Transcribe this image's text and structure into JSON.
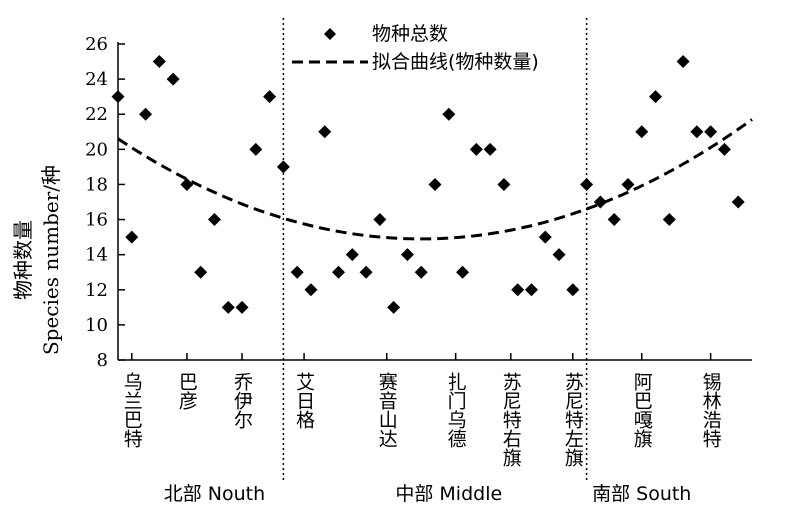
{
  "chart_data": {
    "type": "scatter",
    "ylabel_cn": "物种数量",
    "ylabel_en": "Species number/种",
    "ylim": [
      8,
      26
    ],
    "yticks": [
      8,
      10,
      12,
      14,
      16,
      18,
      20,
      22,
      24,
      26
    ],
    "categories": [
      "乌兰巴特",
      "巴彦",
      "乔伊尔",
      "艾日格",
      "赛音山达",
      "扎门乌德",
      "苏尼特右旗",
      "苏尼特左旗",
      "阿巴嘎旗",
      "锡林浩特"
    ],
    "category_positions": [
      2,
      6,
      10,
      14.5,
      20.5,
      25.5,
      29.5,
      34,
      39,
      44
    ],
    "regions": [
      {
        "label": "北部 Nouth",
        "center": 8
      },
      {
        "label": "中部 Middle",
        "center": 25
      },
      {
        "label": "南部 South",
        "center": 39
      }
    ],
    "region_dividers": [
      13,
      35
    ],
    "xlim": [
      1,
      47
    ],
    "series": [
      {
        "name": "物种总数",
        "x": [
          1,
          2,
          3,
          4,
          5,
          6,
          7,
          8,
          9,
          10,
          11,
          12,
          13,
          14,
          15,
          16,
          17,
          18,
          19,
          20,
          21,
          22,
          23,
          24,
          25,
          26,
          27,
          28,
          29,
          30,
          31,
          32,
          33,
          34,
          35,
          36,
          37,
          38,
          39,
          40,
          41,
          42,
          43,
          44,
          45,
          46
        ],
        "y": [
          23,
          15,
          22,
          25,
          24,
          18,
          13,
          16,
          11,
          11,
          20,
          23,
          19,
          13,
          12,
          21,
          13,
          14,
          13,
          16,
          11,
          14,
          13,
          18,
          22,
          13,
          20,
          20,
          18,
          12,
          12,
          15,
          14,
          12,
          18,
          17,
          16,
          18,
          21,
          23,
          16,
          25,
          21,
          21,
          20,
          17
        ]
      },
      {
        "name": "拟合曲线(物种数量)",
        "fit": "quadratic",
        "x": [
          1,
          23.5,
          47
        ],
        "y": [
          20.6,
          14.9,
          21.7
        ]
      }
    ]
  }
}
